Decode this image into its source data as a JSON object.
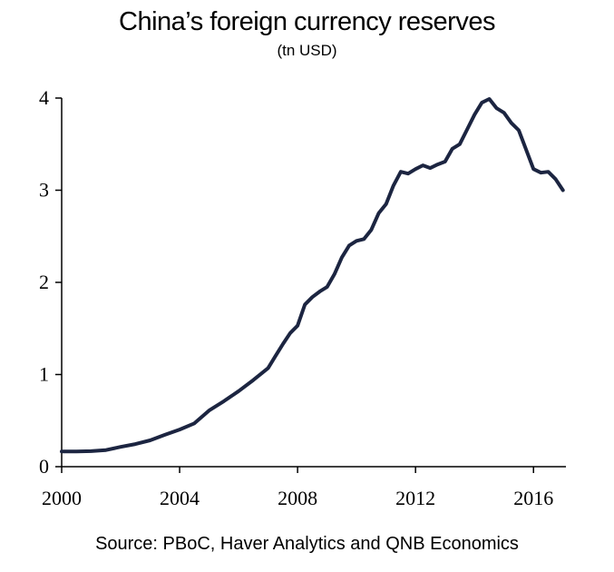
{
  "chart_data": {
    "type": "line",
    "title": "China’s foreign currency reserves",
    "subtitle": "(tn USD)",
    "source": "Source: PBoC, Haver Analytics and QNB Economics",
    "xlabel": "",
    "ylabel": "",
    "xlim": [
      2000,
      2017.1
    ],
    "ylim": [
      0,
      4
    ],
    "x_ticks": [
      2000,
      2004,
      2008,
      2012,
      2016
    ],
    "x_tick_labels": [
      "2000",
      "2004",
      "2008",
      "2012",
      "2016"
    ],
    "y_ticks": [
      0,
      1,
      2,
      3,
      4
    ],
    "y_tick_labels": [
      "0",
      "1",
      "2",
      "3",
      "4"
    ],
    "grid": false,
    "legend": "none",
    "series_color": "#1c2541",
    "series": [
      {
        "name": "China foreign currency reserves",
        "x": [
          2000.0,
          2000.5,
          2001.0,
          2001.5,
          2002.0,
          2002.5,
          2003.0,
          2003.5,
          2004.0,
          2004.5,
          2005.0,
          2005.5,
          2006.0,
          2006.5,
          2007.0,
          2007.25,
          2007.5,
          2007.75,
          2008.0,
          2008.25,
          2008.5,
          2008.75,
          2009.0,
          2009.25,
          2009.5,
          2009.75,
          2010.0,
          2010.25,
          2010.5,
          2010.75,
          2011.0,
          2011.25,
          2011.5,
          2011.75,
          2012.0,
          2012.25,
          2012.5,
          2012.75,
          2013.0,
          2013.25,
          2013.5,
          2013.75,
          2014.0,
          2014.25,
          2014.5,
          2014.75,
          2015.0,
          2015.25,
          2015.5,
          2015.75,
          2016.0,
          2016.25,
          2016.5,
          2016.75,
          2017.0
        ],
        "values": [
          0.165,
          0.165,
          0.168,
          0.18,
          0.215,
          0.245,
          0.286,
          0.346,
          0.403,
          0.47,
          0.61,
          0.71,
          0.82,
          0.94,
          1.07,
          1.2,
          1.33,
          1.45,
          1.53,
          1.76,
          1.84,
          1.9,
          1.95,
          2.09,
          2.27,
          2.4,
          2.45,
          2.47,
          2.57,
          2.75,
          2.85,
          3.05,
          3.2,
          3.18,
          3.23,
          3.27,
          3.24,
          3.28,
          3.31,
          3.45,
          3.5,
          3.66,
          3.82,
          3.95,
          3.99,
          3.89,
          3.84,
          3.73,
          3.65,
          3.44,
          3.23,
          3.19,
          3.2,
          3.12,
          3.0
        ]
      }
    ]
  }
}
